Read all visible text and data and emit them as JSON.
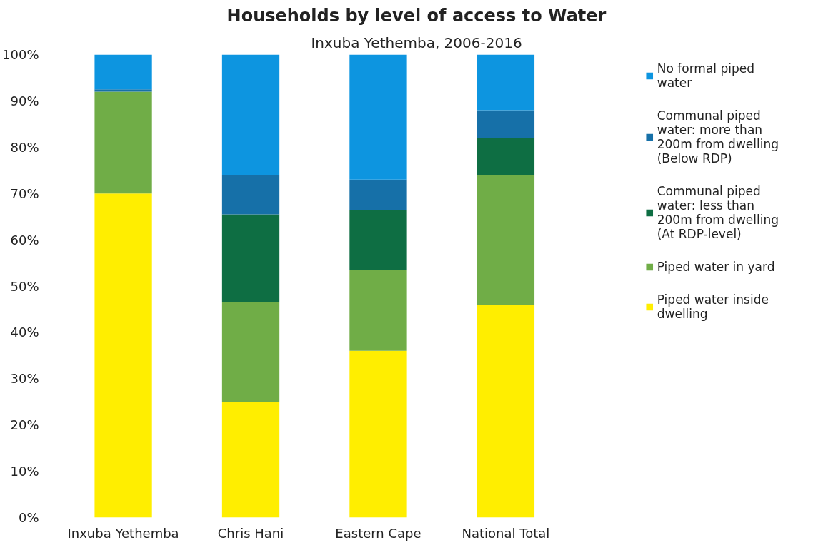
{
  "chart_data": {
    "type": "bar",
    "title": "Households by level of access to Water",
    "subtitle": "Inxuba Yethemba, 2006-2016",
    "categories": [
      "Inxuba Yethemba",
      "Chris Hani",
      "Eastern Cape",
      "National Total"
    ],
    "stacked": true,
    "series": [
      {
        "name": "Piped water inside dwelling",
        "color": "#ffee00",
        "values": [
          70,
          25,
          36,
          46
        ]
      },
      {
        "name": "Piped water in yard",
        "color": "#70ad47",
        "values": [
          22,
          21.5,
          17.5,
          28
        ]
      },
      {
        "name": "Communal piped water: less than 200m from dwelling (At RDP-level)",
        "color": "#0e6e43",
        "values": [
          0,
          19,
          13,
          8
        ]
      },
      {
        "name": "Communal piped water: more than 200m from dwelling (Below RDP)",
        "color": "#1670a8",
        "values": [
          0.5,
          8.5,
          6.5,
          6
        ]
      },
      {
        "name": "No formal piped water",
        "color": "#0d95e0",
        "values": [
          7.5,
          26,
          27,
          12
        ]
      }
    ],
    "ylim": [
      0,
      100
    ],
    "yticks": [
      {
        "value": 0,
        "label": "0%"
      },
      {
        "value": 10,
        "label": "10%"
      },
      {
        "value": 20,
        "label": "20%"
      },
      {
        "value": 30,
        "label": "30%"
      },
      {
        "value": 40,
        "label": "40%"
      },
      {
        "value": 50,
        "label": "50%"
      },
      {
        "value": 60,
        "label": "60%"
      },
      {
        "value": 70,
        "label": "70%"
      },
      {
        "value": 80,
        "label": "80%"
      },
      {
        "value": 90,
        "label": "90%"
      },
      {
        "value": 100,
        "label": "100%"
      }
    ],
    "grid": false,
    "legend": "right"
  }
}
